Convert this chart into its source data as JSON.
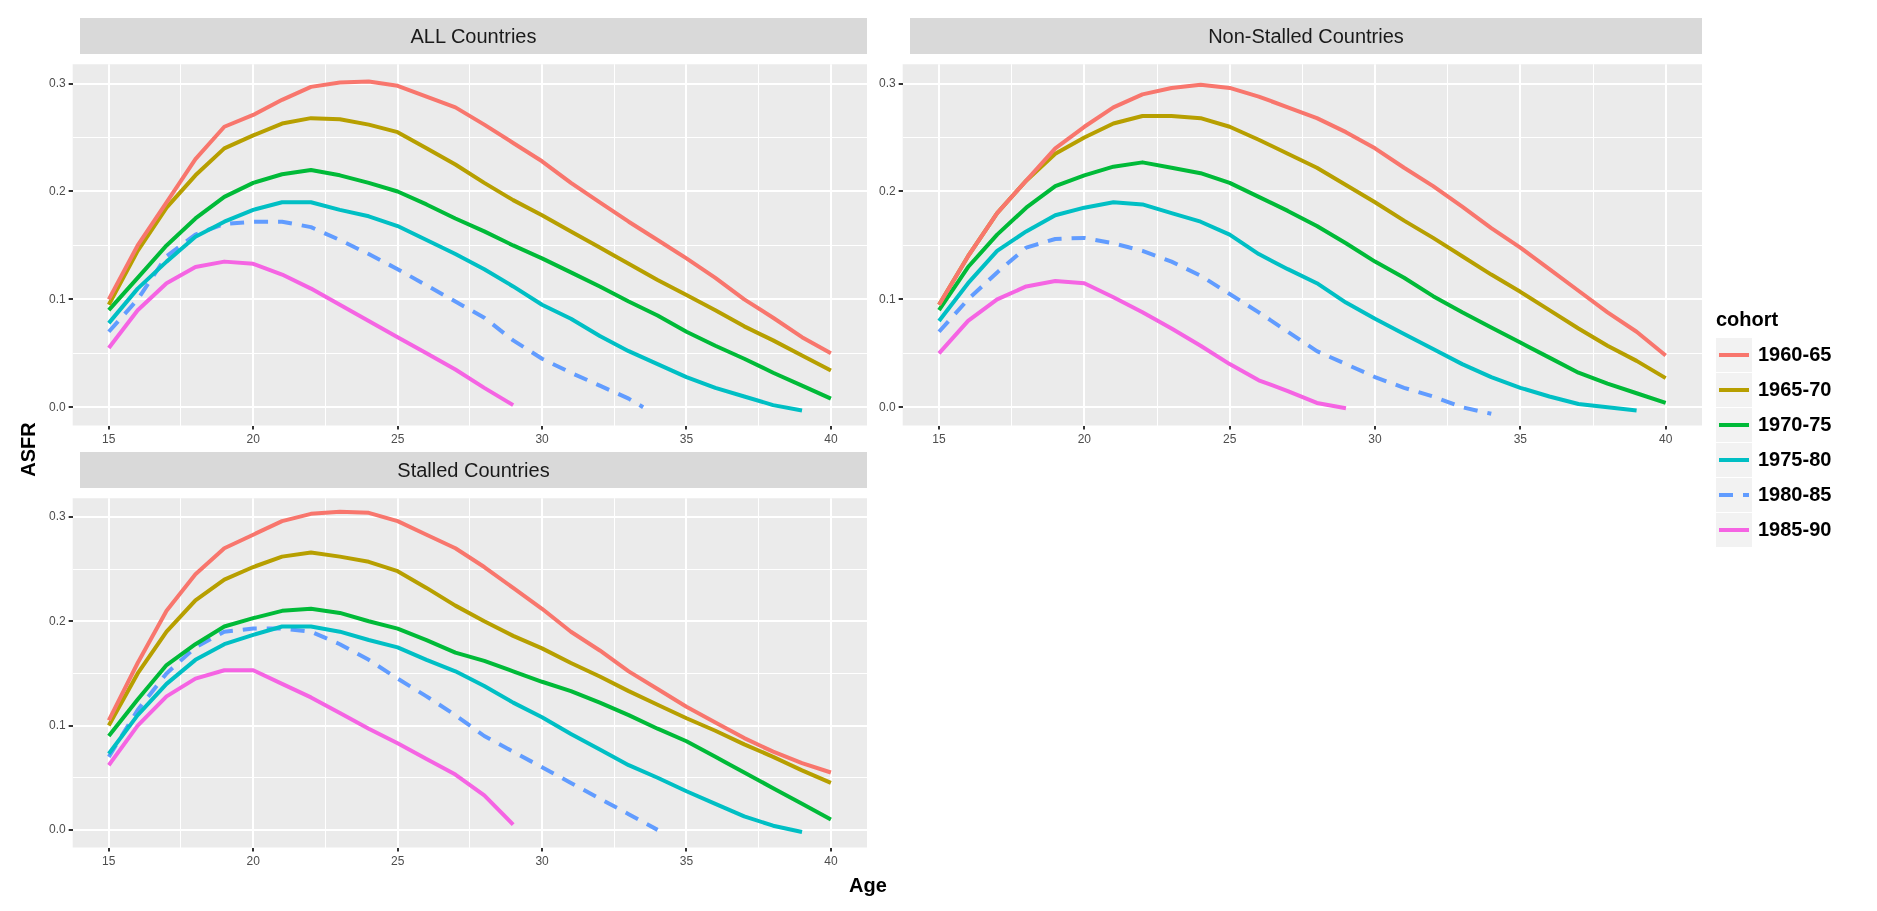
{
  "chart_data": [
    {
      "type": "line",
      "title": "ALL Countries",
      "legend": "right",
      "legend_title": "cohort",
      "grid": true,
      "marker": "none",
      "xlim": [
        13.75,
        41.25
      ],
      "ylim": [
        -0.017,
        0.318
      ],
      "xticks": [
        15,
        {
          "value": 17.5,
          "label": null
        },
        20,
        {
          "value": 22.5,
          "label": null
        },
        25,
        {
          "value": 27.5,
          "label": null
        },
        30,
        {
          "value": 32.5,
          "label": null
        },
        35,
        {
          "value": 37.5,
          "label": null
        },
        40
      ],
      "yticks": [
        {
          "value": 0,
          "label": "0.0"
        },
        {
          "value": 0.05,
          "label": null
        },
        0.1,
        {
          "value": 0.15,
          "label": null
        },
        0.2,
        {
          "value": 0.25,
          "label": null
        },
        0.3
      ],
      "series": [
        {
          "name": "1960-65",
          "color": "#f8766d",
          "line_style": "solid",
          "x": [
            15,
            16,
            17,
            18,
            19,
            20,
            21,
            22,
            23,
            24,
            25,
            26,
            27,
            28,
            29,
            30,
            31,
            32,
            33,
            34,
            35,
            36,
            37,
            38,
            39,
            40
          ],
          "values": [
            0.1,
            0.15,
            0.19,
            0.23,
            0.26,
            0.271,
            0.285,
            0.297,
            0.301,
            0.302,
            0.298,
            0.288,
            0.278,
            0.262,
            0.245,
            0.228,
            0.208,
            0.19,
            0.172,
            0.155,
            0.138,
            0.12,
            0.1,
            0.083,
            0.065,
            0.05
          ]
        },
        {
          "name": "1965-70",
          "color": "#b79f00",
          "line_style": "solid",
          "x": [
            15,
            16,
            17,
            18,
            19,
            20,
            21,
            22,
            23,
            24,
            25,
            26,
            27,
            28,
            29,
            30,
            31,
            32,
            33,
            34,
            35,
            36,
            37,
            38,
            39,
            40
          ],
          "values": [
            0.095,
            0.145,
            0.185,
            0.215,
            0.24,
            0.252,
            0.263,
            0.268,
            0.267,
            0.262,
            0.255,
            0.24,
            0.225,
            0.208,
            0.192,
            0.178,
            0.163,
            0.148,
            0.133,
            0.118,
            0.104,
            0.09,
            0.075,
            0.062,
            0.048,
            0.034
          ]
        },
        {
          "name": "1970-75",
          "color": "#00ba38",
          "line_style": "solid",
          "x": [
            15,
            16,
            17,
            18,
            19,
            20,
            21,
            22,
            23,
            24,
            25,
            26,
            27,
            28,
            29,
            30,
            31,
            32,
            33,
            34,
            35,
            36,
            37,
            38,
            39,
            40
          ],
          "values": [
            0.09,
            0.12,
            0.15,
            0.175,
            0.195,
            0.208,
            0.216,
            0.22,
            0.215,
            0.208,
            0.2,
            0.188,
            0.175,
            0.163,
            0.15,
            0.138,
            0.125,
            0.112,
            0.098,
            0.085,
            0.07,
            0.057,
            0.045,
            0.032,
            0.02,
            0.008
          ]
        },
        {
          "name": "1975-80",
          "color": "#00bfc4",
          "line_style": "solid",
          "x": [
            15,
            16,
            17,
            18,
            19,
            20,
            21,
            22,
            23,
            24,
            25,
            26,
            27,
            28,
            29,
            30,
            31,
            32,
            33,
            34,
            35,
            36,
            37,
            38,
            39
          ],
          "values": [
            0.078,
            0.11,
            0.135,
            0.158,
            0.172,
            0.183,
            0.19,
            0.19,
            0.183,
            0.177,
            0.168,
            0.155,
            0.142,
            0.128,
            0.112,
            0.095,
            0.082,
            0.066,
            0.052,
            0.04,
            0.028,
            0.018,
            0.01,
            0.002,
            -0.003
          ]
        },
        {
          "name": "1980-85",
          "color": "#619cff",
          "line_style": "dashed",
          "x": [
            15,
            16,
            17,
            18,
            19,
            20,
            21,
            22,
            23,
            24,
            25,
            26,
            27,
            28,
            29,
            30,
            31,
            32,
            33,
            33.5
          ],
          "values": [
            0.07,
            0.1,
            0.14,
            0.16,
            0.17,
            0.172,
            0.172,
            0.167,
            0.155,
            0.142,
            0.128,
            0.113,
            0.098,
            0.083,
            0.062,
            0.045,
            0.032,
            0.02,
            0.008,
            0.0
          ]
        },
        {
          "name": "1985-90",
          "color": "#f564e3",
          "line_style": "solid",
          "x": [
            15,
            16,
            17,
            18,
            19,
            20,
            21,
            22,
            23,
            24,
            25,
            26,
            27,
            28,
            29
          ],
          "values": [
            0.055,
            0.09,
            0.115,
            0.13,
            0.135,
            0.133,
            0.123,
            0.11,
            0.095,
            0.08,
            0.065,
            0.05,
            0.035,
            0.018,
            0.002
          ]
        }
      ]
    },
    {
      "type": "line",
      "title": "Non-Stalled Countries",
      "grid": true,
      "marker": "none",
      "xlim": [
        13.75,
        41.25
      ],
      "ylim": [
        -0.017,
        0.318
      ],
      "xticks": [
        15,
        {
          "value": 17.5,
          "label": null
        },
        20,
        {
          "value": 22.5,
          "label": null
        },
        25,
        {
          "value": 27.5,
          "label": null
        },
        30,
        {
          "value": 32.5,
          "label": null
        },
        35,
        {
          "value": 37.5,
          "label": null
        },
        40
      ],
      "yticks": [
        {
          "value": 0,
          "label": "0.0"
        },
        {
          "value": 0.05,
          "label": null
        },
        0.1,
        {
          "value": 0.15,
          "label": null
        },
        0.2,
        {
          "value": 0.25,
          "label": null
        },
        0.3
      ],
      "series": [
        {
          "name": "1960-65",
          "color": "#f8766d",
          "line_style": "solid",
          "x": [
            15,
            16,
            17,
            18,
            19,
            20,
            21,
            22,
            23,
            24,
            25,
            26,
            27,
            28,
            29,
            30,
            31,
            32,
            33,
            34,
            35,
            36,
            37,
            38,
            39,
            40
          ],
          "values": [
            0.095,
            0.14,
            0.18,
            0.21,
            0.24,
            0.26,
            0.278,
            0.29,
            0.296,
            0.299,
            0.296,
            0.288,
            0.278,
            0.268,
            0.255,
            0.24,
            0.222,
            0.205,
            0.186,
            0.166,
            0.148,
            0.128,
            0.108,
            0.088,
            0.07,
            0.048
          ]
        },
        {
          "name": "1965-70",
          "color": "#b79f00",
          "line_style": "solid",
          "x": [
            15,
            16,
            17,
            18,
            19,
            20,
            21,
            22,
            23,
            24,
            25,
            26,
            27,
            28,
            29,
            30,
            31,
            32,
            33,
            34,
            35,
            36,
            37,
            38,
            39,
            40
          ],
          "values": [
            0.095,
            0.14,
            0.18,
            0.21,
            0.235,
            0.25,
            0.263,
            0.27,
            0.27,
            0.268,
            0.26,
            0.248,
            0.235,
            0.222,
            0.206,
            0.19,
            0.173,
            0.157,
            0.14,
            0.123,
            0.107,
            0.09,
            0.073,
            0.057,
            0.043,
            0.027
          ]
        },
        {
          "name": "1970-75",
          "color": "#00ba38",
          "line_style": "solid",
          "x": [
            15,
            16,
            17,
            18,
            19,
            20,
            21,
            22,
            23,
            24,
            25,
            26,
            27,
            28,
            29,
            30,
            31,
            32,
            33,
            34,
            35,
            36,
            37,
            38,
            39,
            40
          ],
          "values": [
            0.09,
            0.13,
            0.16,
            0.185,
            0.205,
            0.215,
            0.223,
            0.227,
            0.222,
            0.217,
            0.208,
            0.195,
            0.182,
            0.168,
            0.152,
            0.135,
            0.12,
            0.103,
            0.088,
            0.074,
            0.06,
            0.046,
            0.032,
            0.022,
            0.013,
            0.004
          ]
        },
        {
          "name": "1975-80",
          "color": "#00bfc4",
          "line_style": "solid",
          "x": [
            15,
            16,
            17,
            18,
            19,
            20,
            21,
            22,
            23,
            24,
            25,
            26,
            27,
            28,
            29,
            30,
            31,
            32,
            33,
            34,
            35,
            36,
            37,
            38,
            39
          ],
          "values": [
            0.08,
            0.115,
            0.145,
            0.163,
            0.178,
            0.185,
            0.19,
            0.188,
            0.18,
            0.172,
            0.16,
            0.142,
            0.128,
            0.115,
            0.097,
            0.082,
            0.068,
            0.054,
            0.04,
            0.028,
            0.018,
            0.01,
            0.003,
            0.0,
            -0.003
          ]
        },
        {
          "name": "1980-85",
          "color": "#619cff",
          "line_style": "dashed",
          "x": [
            15,
            16,
            17,
            18,
            19,
            20,
            21,
            22,
            23,
            24,
            25,
            26,
            27,
            28,
            29,
            30,
            31,
            32,
            33,
            34
          ],
          "values": [
            0.07,
            0.1,
            0.125,
            0.148,
            0.156,
            0.157,
            0.152,
            0.145,
            0.135,
            0.122,
            0.105,
            0.088,
            0.07,
            0.052,
            0.04,
            0.028,
            0.018,
            0.01,
            0.0,
            -0.006
          ]
        },
        {
          "name": "1985-90",
          "color": "#f564e3",
          "line_style": "solid",
          "x": [
            15,
            16,
            17,
            18,
            19,
            20,
            21,
            22,
            23,
            24,
            25,
            26,
            27,
            28,
            29
          ],
          "values": [
            0.05,
            0.08,
            0.1,
            0.112,
            0.117,
            0.115,
            0.102,
            0.088,
            0.073,
            0.057,
            0.04,
            0.025,
            0.015,
            0.004,
            -0.001
          ]
        }
      ]
    },
    {
      "type": "line",
      "title": "Stalled Countries",
      "xlabel": "Age",
      "ylabel": "ASFR",
      "grid": true,
      "marker": "none",
      "xlim": [
        13.75,
        41.25
      ],
      "ylim": [
        -0.017,
        0.318
      ],
      "xticks": [
        15,
        {
          "value": 17.5,
          "label": null
        },
        20,
        {
          "value": 22.5,
          "label": null
        },
        25,
        {
          "value": 27.5,
          "label": null
        },
        30,
        {
          "value": 32.5,
          "label": null
        },
        35,
        {
          "value": 37.5,
          "label": null
        },
        40
      ],
      "yticks": [
        {
          "value": 0,
          "label": "0.0"
        },
        {
          "value": 0.05,
          "label": null
        },
        0.1,
        {
          "value": 0.15,
          "label": null
        },
        0.2,
        {
          "value": 0.25,
          "label": null
        },
        0.3
      ],
      "series": [
        {
          "name": "1960-65",
          "color": "#f8766d",
          "line_style": "solid",
          "x": [
            15,
            16,
            17,
            18,
            19,
            20,
            21,
            22,
            23,
            24,
            25,
            26,
            27,
            28,
            29,
            30,
            31,
            32,
            33,
            34,
            35,
            36,
            37,
            38,
            39,
            40
          ],
          "values": [
            0.105,
            0.16,
            0.21,
            0.245,
            0.27,
            0.283,
            0.296,
            0.303,
            0.305,
            0.304,
            0.296,
            0.283,
            0.27,
            0.252,
            0.232,
            0.212,
            0.19,
            0.172,
            0.152,
            0.135,
            0.118,
            0.103,
            0.088,
            0.075,
            0.064,
            0.055
          ]
        },
        {
          "name": "1965-70",
          "color": "#b79f00",
          "line_style": "solid",
          "x": [
            15,
            16,
            17,
            18,
            19,
            20,
            21,
            22,
            23,
            24,
            25,
            26,
            27,
            28,
            29,
            30,
            31,
            32,
            33,
            34,
            35,
            36,
            37,
            38,
            39,
            40
          ],
          "values": [
            0.1,
            0.15,
            0.19,
            0.22,
            0.24,
            0.252,
            0.262,
            0.266,
            0.262,
            0.257,
            0.248,
            0.232,
            0.215,
            0.2,
            0.186,
            0.174,
            0.16,
            0.147,
            0.133,
            0.12,
            0.107,
            0.095,
            0.082,
            0.07,
            0.057,
            0.045
          ]
        },
        {
          "name": "1970-75",
          "color": "#00ba38",
          "line_style": "solid",
          "x": [
            15,
            16,
            17,
            18,
            19,
            20,
            21,
            22,
            23,
            24,
            25,
            26,
            27,
            28,
            29,
            30,
            31,
            32,
            33,
            34,
            35,
            36,
            37,
            38,
            39,
            40
          ],
          "values": [
            0.09,
            0.125,
            0.158,
            0.178,
            0.195,
            0.203,
            0.21,
            0.212,
            0.208,
            0.2,
            0.193,
            0.182,
            0.17,
            0.162,
            0.152,
            0.142,
            0.133,
            0.122,
            0.11,
            0.097,
            0.085,
            0.07,
            0.055,
            0.04,
            0.025,
            0.01
          ]
        },
        {
          "name": "1975-80",
          "color": "#00bfc4",
          "line_style": "solid",
          "x": [
            15,
            16,
            17,
            18,
            19,
            20,
            21,
            22,
            23,
            24,
            25,
            26,
            27,
            28,
            29,
            30,
            31,
            32,
            33,
            34,
            35,
            36,
            37,
            38,
            39
          ],
          "values": [
            0.073,
            0.11,
            0.14,
            0.163,
            0.178,
            0.187,
            0.195,
            0.195,
            0.19,
            0.182,
            0.175,
            0.163,
            0.152,
            0.138,
            0.122,
            0.108,
            0.092,
            0.077,
            0.062,
            0.05,
            0.037,
            0.025,
            0.013,
            0.004,
            -0.002
          ]
        },
        {
          "name": "1980-85",
          "color": "#619cff",
          "line_style": "dashed",
          "x": [
            15,
            16,
            17,
            18,
            19,
            20,
            21,
            22,
            23,
            24,
            25,
            26,
            27,
            28,
            29,
            30,
            31,
            32,
            33,
            34
          ],
          "values": [
            0.07,
            0.115,
            0.15,
            0.175,
            0.19,
            0.193,
            0.193,
            0.19,
            0.178,
            0.163,
            0.145,
            0.128,
            0.11,
            0.09,
            0.075,
            0.06,
            0.045,
            0.03,
            0.015,
            0.0
          ]
        },
        {
          "name": "1985-90",
          "color": "#f564e3",
          "line_style": "solid",
          "x": [
            15,
            16,
            17,
            18,
            19,
            20,
            21,
            22,
            23,
            24,
            25,
            26,
            27,
            28,
            29
          ],
          "values": [
            0.062,
            0.1,
            0.128,
            0.145,
            0.153,
            0.153,
            0.14,
            0.127,
            0.112,
            0.097,
            0.083,
            0.068,
            0.053,
            0.033,
            0.005
          ]
        }
      ]
    }
  ]
}
